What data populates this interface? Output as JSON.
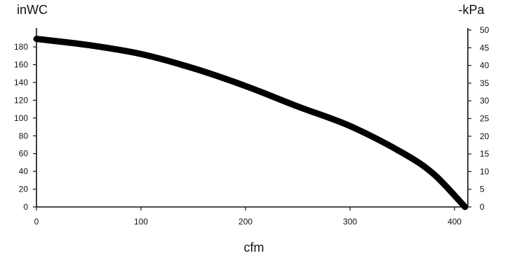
{
  "chart_data": {
    "type": "line",
    "xlabel": "cfm",
    "ylabel": "inWC",
    "y2label": "-kPa",
    "xlim": [
      0,
      410
    ],
    "ylim": [
      0,
      195
    ],
    "y2lim": [
      0,
      50
    ],
    "xticks": [
      0,
      100,
      200,
      300,
      400
    ],
    "yticks": [
      0,
      20,
      40,
      60,
      80,
      100,
      120,
      140,
      160,
      180
    ],
    "y2ticks": [
      0,
      5,
      10,
      15,
      20,
      25,
      30,
      35,
      40,
      45,
      50
    ],
    "grid": false,
    "series": [
      {
        "color": "#000000",
        "x": [
          0,
          50,
          100,
          150,
          200,
          250,
          300,
          350,
          380,
          410
        ],
        "y": [
          189,
          182,
          172,
          156,
          136,
          113,
          91,
          61,
          37,
          0
        ]
      }
    ]
  }
}
